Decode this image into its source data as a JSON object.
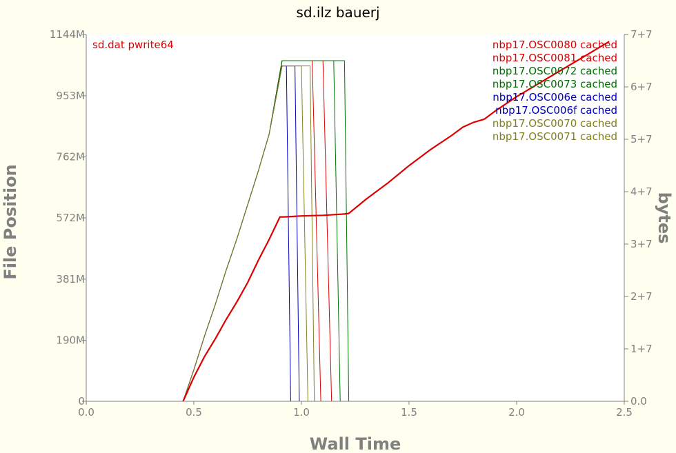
{
  "chart_data": {
    "type": "line",
    "title": "sd.ilz bauerj",
    "xlabel": "Wall Time",
    "ylabel_left": "File Position",
    "ylabel_right": "bytes",
    "xlim": [
      0,
      2.5
    ],
    "ylim_left": [
      0,
      1144
    ],
    "ylim_right": [
      0,
      70000000
    ],
    "x_ticks": [
      {
        "value": 0.0,
        "label": "0.0"
      },
      {
        "value": 0.5,
        "label": "0.5"
      },
      {
        "value": 1.0,
        "label": "1.0"
      },
      {
        "value": 1.5,
        "label": "1.5"
      },
      {
        "value": 2.0,
        "label": "2.0"
      },
      {
        "value": 2.5,
        "label": "2.5"
      }
    ],
    "y_left_ticks": [
      {
        "value": 0,
        "label": "0"
      },
      {
        "value": 190,
        "label": "190M"
      },
      {
        "value": 381,
        "label": "381M"
      },
      {
        "value": 572,
        "label": "572M"
      },
      {
        "value": 762,
        "label": "762M"
      },
      {
        "value": 953,
        "label": "953M"
      },
      {
        "value": 1144,
        "label": "1144M"
      }
    ],
    "y_right_ticks": [
      {
        "value": 0,
        "label": "0.0"
      },
      {
        "value": 10000000,
        "label": "1+7"
      },
      {
        "value": 20000000,
        "label": "2+7"
      },
      {
        "value": 30000000,
        "label": "3+7"
      },
      {
        "value": 40000000,
        "label": "4+7"
      },
      {
        "value": 50000000,
        "label": "5+7"
      },
      {
        "value": 60000000,
        "label": "6+7"
      },
      {
        "value": 70000000,
        "label": "7+7"
      }
    ],
    "legend_placement": "top-right",
    "left_legend_placement": "top-left",
    "grid": false,
    "series": [
      {
        "name": "sd.dat pwrite64",
        "axis": "left",
        "color": "#dd0000",
        "width": 2.2,
        "points": [
          [
            0.45,
            0
          ],
          [
            0.5,
            75
          ],
          [
            0.55,
            140
          ],
          [
            0.6,
            195
          ],
          [
            0.65,
            255
          ],
          [
            0.7,
            310
          ],
          [
            0.75,
            370
          ],
          [
            0.8,
            440
          ],
          [
            0.85,
            505
          ],
          [
            0.9,
            575
          ],
          [
            0.92,
            575
          ],
          [
            1.0,
            578
          ],
          [
            1.1,
            580
          ],
          [
            1.2,
            584
          ],
          [
            1.22,
            586
          ],
          [
            1.3,
            630
          ],
          [
            1.4,
            680
          ],
          [
            1.5,
            735
          ],
          [
            1.6,
            785
          ],
          [
            1.7,
            830
          ],
          [
            1.75,
            855
          ],
          [
            1.8,
            870
          ],
          [
            1.85,
            880
          ],
          [
            1.9,
            905
          ],
          [
            2.0,
            950
          ],
          [
            2.1,
            990
          ],
          [
            2.2,
            1030
          ],
          [
            2.3,
            1070
          ],
          [
            2.43,
            1122
          ]
        ]
      },
      {
        "name": "nbp17.OSC0080 cached",
        "legend": true,
        "axis": "right",
        "color": "#dd0000",
        "width": 1,
        "points": [
          [
            0.45,
            0
          ],
          [
            0.5,
            6000000
          ],
          [
            0.55,
            12500000
          ],
          [
            0.6,
            18500000
          ],
          [
            0.65,
            25000000
          ],
          [
            0.7,
            31000000
          ],
          [
            0.75,
            37500000
          ],
          [
            0.8,
            44000000
          ],
          [
            0.85,
            51000000
          ],
          [
            0.91,
            65000000
          ],
          [
            1.1,
            65000000
          ],
          [
            1.14,
            0
          ],
          [
            2.45,
            0
          ]
        ]
      },
      {
        "name": "nbp17.OSC0081 cached",
        "legend": true,
        "axis": "right",
        "color": "#dd0000",
        "width": 1,
        "points": [
          [
            0.45,
            0
          ],
          [
            0.5,
            6000000
          ],
          [
            0.55,
            12500000
          ],
          [
            0.6,
            18500000
          ],
          [
            0.65,
            25000000
          ],
          [
            0.7,
            31000000
          ],
          [
            0.75,
            37500000
          ],
          [
            0.8,
            44000000
          ],
          [
            0.85,
            51000000
          ],
          [
            0.91,
            65000000
          ],
          [
            1.05,
            65000000
          ],
          [
            1.09,
            0
          ],
          [
            2.45,
            0
          ]
        ]
      },
      {
        "name": "nbp17.OSC0072 cached",
        "legend": true,
        "axis": "right",
        "color": "#007000",
        "width": 1,
        "points": [
          [
            0.45,
            0
          ],
          [
            0.5,
            6000000
          ],
          [
            0.55,
            12500000
          ],
          [
            0.6,
            18500000
          ],
          [
            0.65,
            25000000
          ],
          [
            0.7,
            31000000
          ],
          [
            0.75,
            37500000
          ],
          [
            0.8,
            44000000
          ],
          [
            0.85,
            51000000
          ],
          [
            0.91,
            65000000
          ],
          [
            1.2,
            65000000
          ],
          [
            1.22,
            0
          ],
          [
            2.45,
            0
          ]
        ]
      },
      {
        "name": "nbp17.OSC0073 cached",
        "legend": true,
        "axis": "right",
        "color": "#007000",
        "width": 1,
        "points": [
          [
            0.45,
            0
          ],
          [
            0.5,
            6000000
          ],
          [
            0.55,
            12500000
          ],
          [
            0.6,
            18500000
          ],
          [
            0.65,
            25000000
          ],
          [
            0.7,
            31000000
          ],
          [
            0.75,
            37500000
          ],
          [
            0.8,
            44000000
          ],
          [
            0.85,
            51000000
          ],
          [
            0.91,
            65000000
          ],
          [
            1.15,
            65000000
          ],
          [
            1.18,
            0
          ],
          [
            2.45,
            0
          ]
        ]
      },
      {
        "name": "nbp17.OSC006e cached",
        "legend": true,
        "axis": "right",
        "color": "#0000c0",
        "width": 1,
        "points": [
          [
            0.45,
            0
          ],
          [
            0.5,
            6000000
          ],
          [
            0.55,
            12500000
          ],
          [
            0.6,
            18500000
          ],
          [
            0.65,
            25000000
          ],
          [
            0.7,
            31000000
          ],
          [
            0.75,
            37500000
          ],
          [
            0.8,
            44000000
          ],
          [
            0.85,
            51000000
          ],
          [
            0.91,
            64000000
          ],
          [
            0.93,
            64000000
          ],
          [
            0.95,
            0
          ],
          [
            2.45,
            0
          ]
        ]
      },
      {
        "name": "nbp17.OSC006f cached",
        "legend": true,
        "axis": "right",
        "color": "#0000c0",
        "width": 1,
        "points": [
          [
            0.45,
            0
          ],
          [
            0.5,
            6000000
          ],
          [
            0.55,
            12500000
          ],
          [
            0.6,
            18500000
          ],
          [
            0.65,
            25000000
          ],
          [
            0.7,
            31000000
          ],
          [
            0.75,
            37500000
          ],
          [
            0.8,
            44000000
          ],
          [
            0.85,
            51000000
          ],
          [
            0.91,
            64000000
          ],
          [
            0.97,
            64000000
          ],
          [
            0.99,
            0
          ],
          [
            2.45,
            0
          ]
        ]
      },
      {
        "name": "nbp17.OSC0070 cached",
        "legend": true,
        "axis": "right",
        "color": "#808020",
        "width": 1,
        "points": [
          [
            0.45,
            0
          ],
          [
            0.5,
            6000000
          ],
          [
            0.55,
            12500000
          ],
          [
            0.6,
            18500000
          ],
          [
            0.65,
            25000000
          ],
          [
            0.7,
            31000000
          ],
          [
            0.75,
            37500000
          ],
          [
            0.8,
            44000000
          ],
          [
            0.85,
            51000000
          ],
          [
            0.91,
            64000000
          ],
          [
            1.0,
            64000000
          ],
          [
            1.03,
            0
          ],
          [
            2.45,
            0
          ]
        ]
      },
      {
        "name": "nbp17.OSC0071 cached",
        "legend": true,
        "axis": "right",
        "color": "#808020",
        "width": 1,
        "points": [
          [
            0.45,
            0
          ],
          [
            0.5,
            6000000
          ],
          [
            0.55,
            12500000
          ],
          [
            0.6,
            18500000
          ],
          [
            0.65,
            25000000
          ],
          [
            0.7,
            31000000
          ],
          [
            0.75,
            37500000
          ],
          [
            0.8,
            44000000
          ],
          [
            0.85,
            51000000
          ],
          [
            0.91,
            64000000
          ],
          [
            1.04,
            64000000
          ],
          [
            1.06,
            0
          ],
          [
            2.45,
            0
          ]
        ]
      }
    ]
  }
}
